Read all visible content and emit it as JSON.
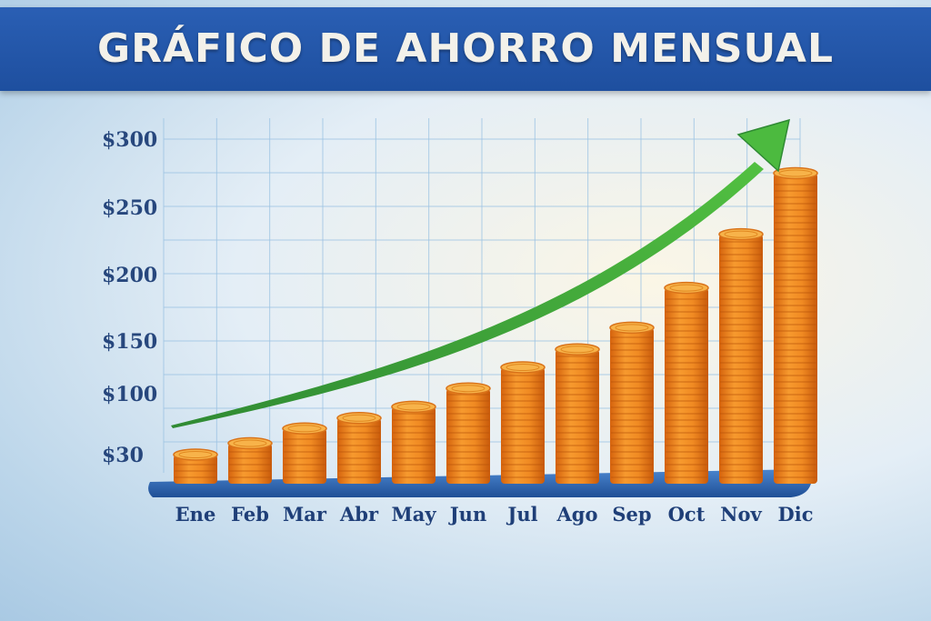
{
  "header": {
    "title": "GRÁFICO DE AHORRO MENSUAL"
  },
  "chart_data": {
    "type": "bar",
    "title": "GRÁFICO DE AHORRO MENSUAL",
    "xlabel": "",
    "ylabel": "",
    "categories": [
      "Ene",
      "Feb",
      "Mar",
      "Abr",
      "May",
      "Jun",
      "Jul",
      "Ago",
      "Sep",
      "Oct",
      "Nov",
      "Dic"
    ],
    "values": [
      30,
      43,
      60,
      72,
      85,
      105,
      125,
      142,
      160,
      190,
      230,
      275
    ],
    "ytick_labels": [
      "$30",
      "$100",
      "$150",
      "$200",
      "$250",
      "$300"
    ],
    "ytick_values": [
      30,
      100,
      150,
      200,
      250,
      300
    ],
    "ylim": [
      0,
      300
    ],
    "grid": true,
    "trend_arrow": true,
    "colors": {
      "coin": "#f08a22",
      "coin_dark": "#d96a10",
      "coin_top": "#f7b34a",
      "arrow": "#3ea83a",
      "base": "#2d6cbf",
      "grid": "#9cc3e3"
    }
  }
}
